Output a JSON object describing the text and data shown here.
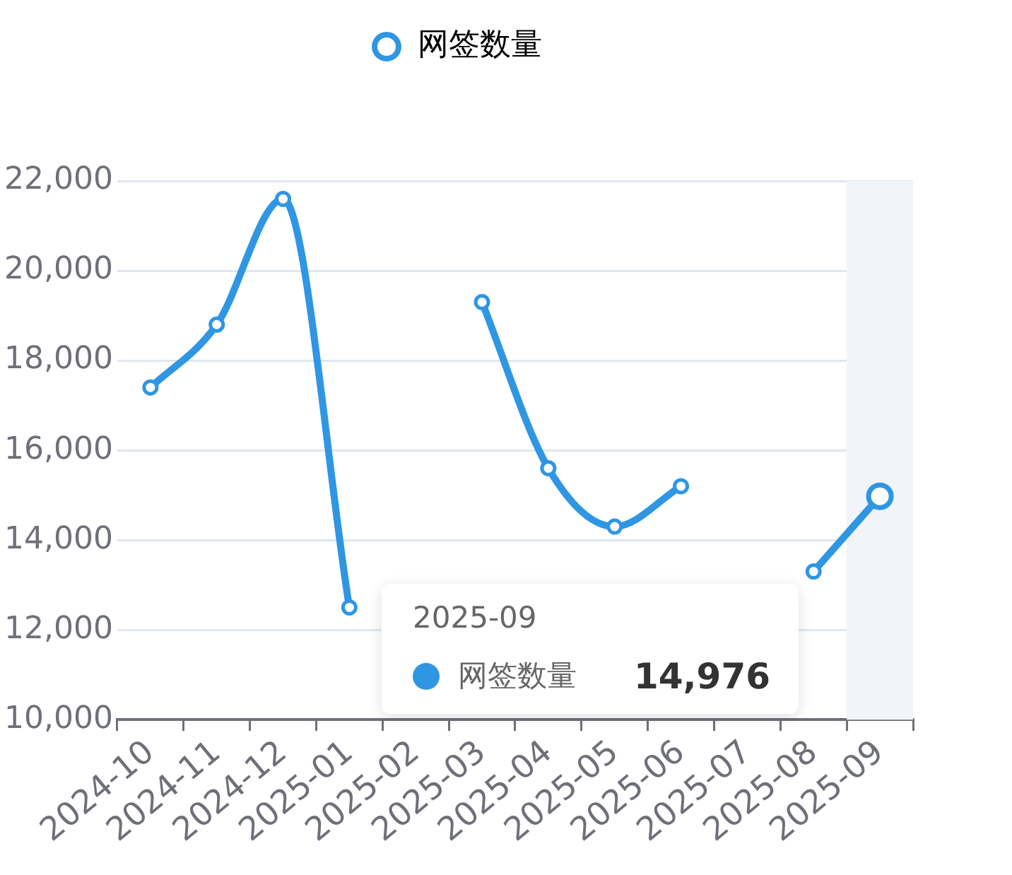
{
  "chart_data": {
    "type": "line",
    "categories": [
      "2024-10",
      "2024-11",
      "2024-12",
      "2025-01",
      "2025-02",
      "2025-03",
      "2025-04",
      "2025-05",
      "2025-06",
      "2025-07",
      "2025-08",
      "2025-09"
    ],
    "series": [
      {
        "name": "网签数量",
        "color": "#2f96e3",
        "values": [
          17400,
          18800,
          21600,
          12500,
          null,
          19300,
          15600,
          14300,
          15200,
          null,
          13300,
          14976
        ]
      }
    ],
    "ylim": [
      10000,
      22000
    ],
    "yticks": [
      {
        "value": 10000,
        "label": "10,000"
      },
      {
        "value": 12000,
        "label": "12,000"
      },
      {
        "value": 14000,
        "label": "14,000"
      },
      {
        "value": 16000,
        "label": "16,000"
      },
      {
        "value": 18000,
        "label": "18,000"
      },
      {
        "value": 20000,
        "label": "20,000"
      },
      {
        "value": 22000,
        "label": "22,000"
      }
    ],
    "grid": "y",
    "legend": "top",
    "marker": "circle",
    "line_style": "solid",
    "annotations": [
      "2025-09",
      "网签数量",
      "14,976"
    ],
    "bands": [
      {
        "axis": "x",
        "from": "2025-09",
        "to": "2025-09",
        "color": "#f1f4f9"
      }
    ]
  }
}
